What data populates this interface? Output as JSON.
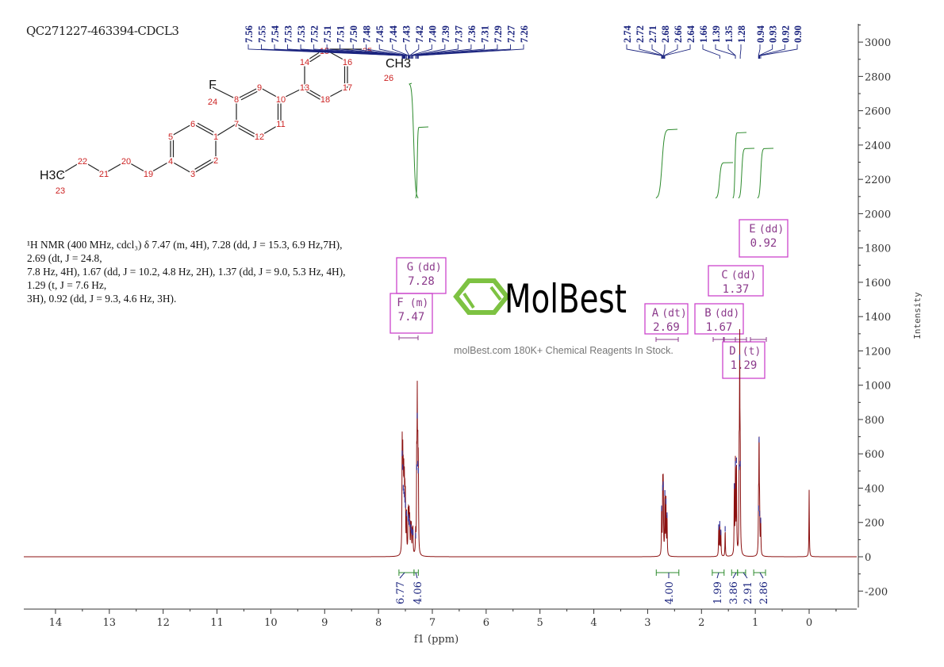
{
  "title": "QC271227-463394-CDCL3",
  "nmr_text": [
    "¹H NMR (400 MHz, cdcl₃) δ 7.47 (m, 4H), 7.28 (dd, J = 15.3, 6.9 Hz,7H), 2.69 (dt, J = 24.8,",
    "7.8 Hz, 4H), 1.67 (dd, J = 10.2, 4.8 Hz, 2H), 1.37 (dd, J = 9.0, 5.3 Hz, 4H), 1.29 (t, J = 7.6 Hz,",
    "3H), 0.92 (dd, J = 9.3, 4.6 Hz, 3H)."
  ],
  "watermark": {
    "logo": "MolBest",
    "tagline": "molBest.com 180K+ Chemical Reagents In Stock.",
    "color": "#7dc242"
  },
  "molecule": {
    "atom_numbers": [
      "1",
      "2",
      "3",
      "4",
      "5",
      "6",
      "7",
      "8",
      "9",
      "10",
      "11",
      "12",
      "13",
      "14",
      "15",
      "16",
      "17",
      "18",
      "19",
      "20",
      "21",
      "22",
      "23",
      "24",
      "25",
      "26"
    ],
    "fluorine": "F",
    "methyl_left": "H3C",
    "methyl_right": "CH3"
  },
  "colors": {
    "spectrum": "#8b1010",
    "peak_labels": "#1a237e",
    "integral": "#2e8b2e",
    "multiplet_box": "#cc44cc",
    "atom_number": "#cc2222"
  },
  "chart_data": {
    "type": "line",
    "xlabel": "f1 (ppm)",
    "ylabel": "Intensity",
    "xlim": [
      14.6,
      -0.9
    ],
    "ylim": [
      -300,
      3100
    ],
    "x_reversed": true,
    "grid": false,
    "xticks": [
      14,
      13,
      12,
      11,
      10,
      9,
      8,
      7,
      6,
      5,
      4,
      3,
      2,
      1,
      0
    ],
    "yticks": [
      -200,
      0,
      200,
      400,
      600,
      800,
      1000,
      1200,
      1400,
      1600,
      1800,
      2000,
      2200,
      2400,
      2600,
      2800,
      3000
    ],
    "peaks": [
      [
        7.56,
        600
      ],
      [
        7.55,
        520
      ],
      [
        7.54,
        400
      ],
      [
        7.53,
        380
      ],
      [
        7.52,
        360
      ],
      [
        7.51,
        330
      ],
      [
        7.5,
        300
      ],
      [
        7.48,
        250
      ],
      [
        7.45,
        220
      ],
      [
        7.44,
        230
      ],
      [
        7.43,
        200
      ],
      [
        7.42,
        190
      ],
      [
        7.4,
        170
      ],
      [
        7.39,
        150
      ],
      [
        7.37,
        140
      ],
      [
        7.36,
        140
      ],
      [
        7.31,
        120
      ],
      [
        7.29,
        520
      ],
      [
        7.28,
        820
      ],
      [
        7.27,
        540
      ],
      [
        7.26,
        500
      ],
      [
        2.74,
        280
      ],
      [
        2.72,
        400
      ],
      [
        2.71,
        420
      ],
      [
        2.68,
        370
      ],
      [
        2.66,
        320
      ],
      [
        2.64,
        240
      ],
      [
        1.68,
        170
      ],
      [
        1.66,
        190
      ],
      [
        1.64,
        140
      ],
      [
        1.56,
        160
      ],
      [
        1.39,
        410
      ],
      [
        1.37,
        540
      ],
      [
        1.35,
        560
      ],
      [
        1.3,
        520
      ],
      [
        1.29,
        1160
      ],
      [
        1.28,
        540
      ],
      [
        0.94,
        280
      ],
      [
        0.93,
        680
      ],
      [
        0.92,
        250
      ],
      [
        0.9,
        210
      ],
      [
        0.0,
        390
      ]
    ],
    "peak_label_groups": [
      [
        "7.56",
        "7.55",
        "7.54",
        "7.53",
        "7.53",
        "7.52",
        "7.51",
        "7.51",
        "7.50",
        "7.48",
        "7.45",
        "7.44",
        "7.43",
        "7.42",
        "7.40",
        "7.39",
        "7.37",
        "7.36",
        "7.31",
        "7.29",
        "7.27",
        "7.26"
      ],
      [
        "2.74",
        "2.72",
        "2.71",
        "2.68",
        "2.66",
        "2.64",
        "1.66",
        "1.39",
        "1.35",
        "1.28"
      ],
      [
        "0.94",
        "0.93",
        "0.92",
        "0.90"
      ]
    ],
    "multiplets": [
      {
        "letter": "A",
        "type": "(dt)",
        "shift": "2.69"
      },
      {
        "letter": "B",
        "type": "(dd)",
        "shift": "1.67"
      },
      {
        "letter": "C",
        "type": "(dd)",
        "shift": "1.37"
      },
      {
        "letter": "D",
        "type": "(t)",
        "shift": "1.29"
      },
      {
        "letter": "E",
        "type": "(dd)",
        "shift": "0.92"
      },
      {
        "letter": "F",
        "type": "(m)",
        "shift": "7.47"
      },
      {
        "letter": "G",
        "type": "(dd)",
        "shift": "7.28"
      }
    ],
    "integrals": [
      {
        "value": "6.77",
        "from": 7.62,
        "to": 7.34
      },
      {
        "value": "4.06",
        "from": 7.34,
        "to": 7.26
      },
      {
        "value": "4.00",
        "from": 2.84,
        "to": 2.42
      },
      {
        "value": "1.99",
        "from": 1.8,
        "to": 1.58
      },
      {
        "value": "3.86",
        "from": 1.44,
        "to": 1.33
      },
      {
        "value": "2.91",
        "from": 1.33,
        "to": 1.18
      },
      {
        "value": "2.86",
        "from": 1.03,
        "to": 0.81
      }
    ]
  }
}
